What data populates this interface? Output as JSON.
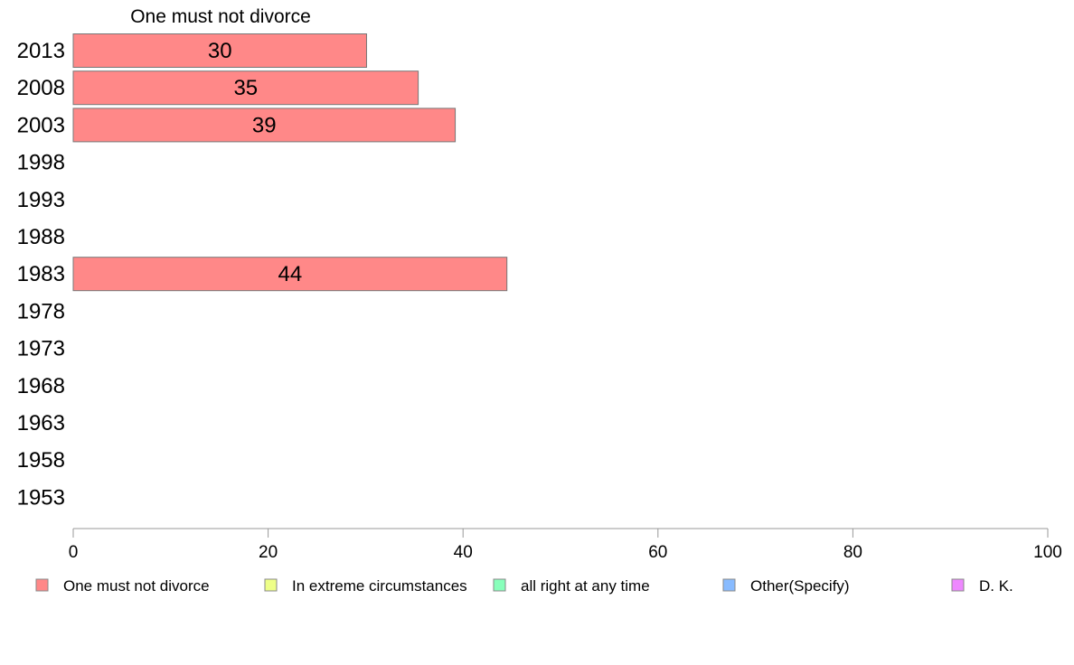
{
  "chart_data": {
    "type": "bar",
    "orientation": "horizontal",
    "title": "",
    "series_heading": "One must not divorce",
    "categories": [
      "2013",
      "2008",
      "2003",
      "1998",
      "1993",
      "1988",
      "1983",
      "1978",
      "1973",
      "1968",
      "1963",
      "1958",
      "1953"
    ],
    "series": [
      {
        "name": "One must not divorce",
        "color": "#ff8888",
        "values": [
          30.1,
          35.4,
          39.2,
          null,
          null,
          null,
          44.5,
          null,
          null,
          null,
          null,
          null,
          null
        ],
        "labels": [
          "30",
          "35",
          "39",
          "",
          "",
          "",
          "44",
          "",
          "",
          "",
          "",
          "",
          ""
        ]
      }
    ],
    "xlim": [
      0,
      100
    ],
    "xticks": [
      0,
      20,
      40,
      60,
      80,
      100
    ],
    "grid": false,
    "legend_position": "bottom",
    "legend": [
      {
        "label": "One must not divorce",
        "color": "#ff8888"
      },
      {
        "label": "In extreme circumstances",
        "color": "#eeff88"
      },
      {
        "label": "all right at any time",
        "color": "#88ffbb"
      },
      {
        "label": "Other(Specify)",
        "color": "#88bbff"
      },
      {
        "label": "D. K.",
        "color": "#ee88ff"
      }
    ]
  }
}
